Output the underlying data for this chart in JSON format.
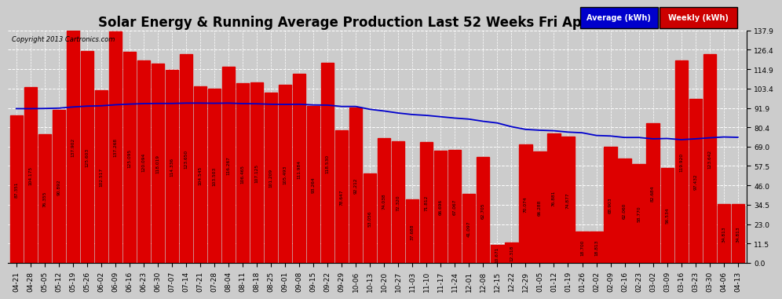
{
  "title": "Solar Energy & Running Average Production Last 52 Weeks Fri Apr 19 06:31",
  "copyright": "Copyright 2013 Cartronics.com",
  "yticks": [
    0.0,
    11.5,
    23.0,
    34.5,
    46.0,
    57.5,
    69.0,
    80.4,
    91.9,
    103.4,
    114.9,
    126.4,
    137.9
  ],
  "categories": [
    "04-21",
    "04-28",
    "05-05",
    "05-12",
    "05-19",
    "05-26",
    "06-02",
    "06-09",
    "06-16",
    "06-23",
    "06-30",
    "07-07",
    "07-14",
    "07-21",
    "07-28",
    "08-04",
    "08-11",
    "08-18",
    "08-25",
    "09-01",
    "09-08",
    "09-15",
    "09-22",
    "09-29",
    "10-06",
    "10-13",
    "10-20",
    "10-27",
    "11-03",
    "11-10",
    "11-17",
    "11-24",
    "12-01",
    "12-08",
    "12-15",
    "12-22",
    "12-29",
    "01-05",
    "01-12",
    "01-19",
    "01-26",
    "02-02",
    "02-09",
    "02-16",
    "02-23",
    "03-02",
    "03-09",
    "03-16",
    "03-23",
    "03-30",
    "04-06",
    "04-13"
  ],
  "weekly_values": [
    87.351,
    104.175,
    76.355,
    90.892,
    137.902,
    125.603,
    102.517,
    137.268,
    125.095,
    120.094,
    118.019,
    114.336,
    123.65,
    104.545,
    103.503,
    116.267,
    106.465,
    107.125,
    101.209,
    105.493,
    111.984,
    93.264,
    118.53,
    78.647,
    92.212,
    53.056,
    74.038,
    72.32,
    37.688,
    71.812,
    66.696,
    67.067,
    41.097,
    62.705,
    10.671,
    12.318,
    70.074,
    66.288,
    76.881,
    74.877,
    18.7,
    18.813,
    68.903,
    62.06,
    58.77,
    82.684,
    56.534,
    119.92,
    97.432,
    123.642,
    34.813,
    34.813
  ],
  "average_values": [
    91.5,
    91.5,
    91.6,
    91.8,
    92.5,
    93.0,
    93.2,
    93.8,
    94.2,
    94.5,
    94.6,
    94.6,
    94.8,
    94.8,
    94.7,
    94.8,
    94.5,
    94.4,
    94.1,
    94.0,
    94.1,
    93.7,
    93.6,
    92.8,
    92.8,
    91.1,
    90.1,
    88.9,
    88.0,
    87.5,
    86.7,
    85.9,
    85.3,
    84.0,
    83.0,
    80.8,
    79.2,
    78.7,
    78.4,
    77.6,
    77.2,
    75.6,
    75.3,
    74.4,
    74.4,
    73.6,
    73.8,
    73.1,
    73.6,
    74.2,
    74.7,
    74.5
  ],
  "bar_color": "#DD0000",
  "line_color": "#0000CC",
  "bg_color": "#CCCCCC",
  "grid_color": "#FFFFFF",
  "title_fontsize": 12,
  "tick_fontsize": 6.5,
  "legend_avg_color": "#0000CC",
  "legend_weekly_color": "#CC0000",
  "legend_avg_label": "Average (kWh)",
  "legend_weekly_label": "Weekly (kWh)"
}
